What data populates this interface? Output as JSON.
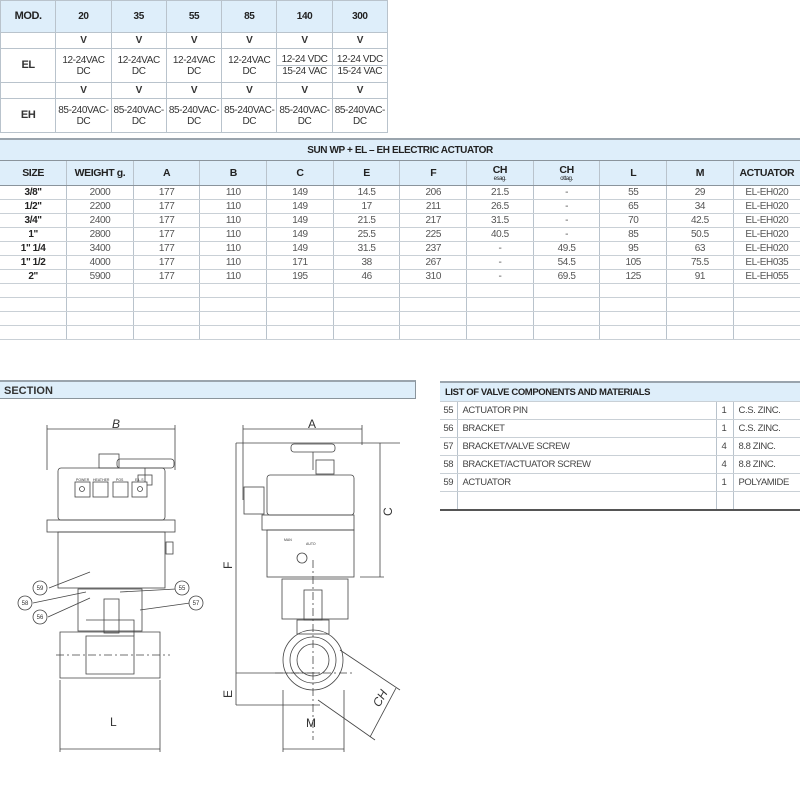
{
  "mod_table": {
    "header": [
      "MOD.",
      "20",
      "35",
      "55",
      "85",
      "140",
      "300"
    ],
    "v_label": "V",
    "el": {
      "label": "EL",
      "values": [
        [
          "12-24",
          "VAC DC"
        ],
        [
          "12-24",
          "VAC DC"
        ],
        [
          "12-24",
          "VAC DC"
        ],
        [
          "12-24",
          "VAC DC"
        ],
        [
          "12-24 VDC",
          "15-24 VAC"
        ],
        [
          "12-24 VDC",
          "15-24 VAC"
        ]
      ]
    },
    "eh": {
      "label": "EH",
      "values": [
        [
          "85-240",
          "VAC-DC"
        ],
        [
          "85-240",
          "VAC-DC"
        ],
        [
          "85-240",
          "VAC-DC"
        ],
        [
          "85-240",
          "VAC-DC"
        ],
        [
          "85-240",
          "VAC-DC"
        ],
        [
          "85-240",
          "VAC-DC"
        ]
      ]
    }
  },
  "main_table": {
    "title": "SUN WP + EL – EH ELECTRIC ACTUATOR",
    "columns": [
      {
        "label": "SIZE"
      },
      {
        "label": "WEIGHT g."
      },
      {
        "label": "A"
      },
      {
        "label": "B"
      },
      {
        "label": "C"
      },
      {
        "label": "E"
      },
      {
        "label": "F"
      },
      {
        "label": "CH",
        "sub": "esag."
      },
      {
        "label": "CH",
        "sub": "ottag."
      },
      {
        "label": "L"
      },
      {
        "label": "M"
      },
      {
        "label": "ACTUATOR"
      }
    ],
    "rows": [
      [
        "3/8\"",
        "2000",
        "177",
        "110",
        "149",
        "14.5",
        "206",
        "21.5",
        "-",
        "55",
        "29",
        "EL-EH020"
      ],
      [
        "1/2\"",
        "2200",
        "177",
        "110",
        "149",
        "17",
        "211",
        "26.5",
        "-",
        "65",
        "34",
        "EL-EH020"
      ],
      [
        "3/4\"",
        "2400",
        "177",
        "110",
        "149",
        "21.5",
        "217",
        "31.5",
        "-",
        "70",
        "42.5",
        "EL-EH020"
      ],
      [
        "1\"",
        "2800",
        "177",
        "110",
        "149",
        "25.5",
        "225",
        "40.5",
        "-",
        "85",
        "50.5",
        "EL-EH020"
      ],
      [
        "1\" 1/4",
        "3400",
        "177",
        "110",
        "149",
        "31.5",
        "237",
        "-",
        "49.5",
        "95",
        "63",
        "EL-EH020"
      ],
      [
        "1\" 1/2",
        "4000",
        "177",
        "110",
        "171",
        "38",
        "267",
        "-",
        "54.5",
        "105",
        "75.5",
        "EL-EH035"
      ],
      [
        "2\"",
        "5900",
        "177",
        "110",
        "195",
        "46",
        "310",
        "-",
        "69.5",
        "125",
        "91",
        "EL-EH055"
      ]
    ]
  },
  "section": {
    "title": "SECTION"
  },
  "components": {
    "title": "LIST OF VALVE COMPONENTS AND MATERIALS",
    "items": [
      {
        "no": "55",
        "name": "ACTUATOR PIN",
        "qty": "1",
        "material": "C.S. ZINC."
      },
      {
        "no": "56",
        "name": "BRACKET",
        "qty": "1",
        "material": "C.S. ZINC."
      },
      {
        "no": "57",
        "name": "BRACKET/VALVE SCREW",
        "qty": "4",
        "material": "8.8 ZINC."
      },
      {
        "no": "58",
        "name": "BRACKET/ACTUATOR SCREW",
        "qty": "4",
        "material": "8.8 ZINC."
      },
      {
        "no": "59",
        "name": "ACTUATOR",
        "qty": "1",
        "material": "POLYAMIDE"
      }
    ]
  },
  "drawing": {
    "dims": {
      "A": "A",
      "B": "B",
      "C": "C",
      "E": "E",
      "F": "F",
      "L": "L",
      "M": "M",
      "CH": "CH"
    },
    "panel_labels": [
      "POWER",
      "HEATHER",
      "POS",
      "E.L.S"
    ],
    "switch_labels": {
      "man": "MAN",
      "auto": "AUTO"
    },
    "callouts": [
      "55",
      "56",
      "57",
      "58",
      "59"
    ]
  }
}
